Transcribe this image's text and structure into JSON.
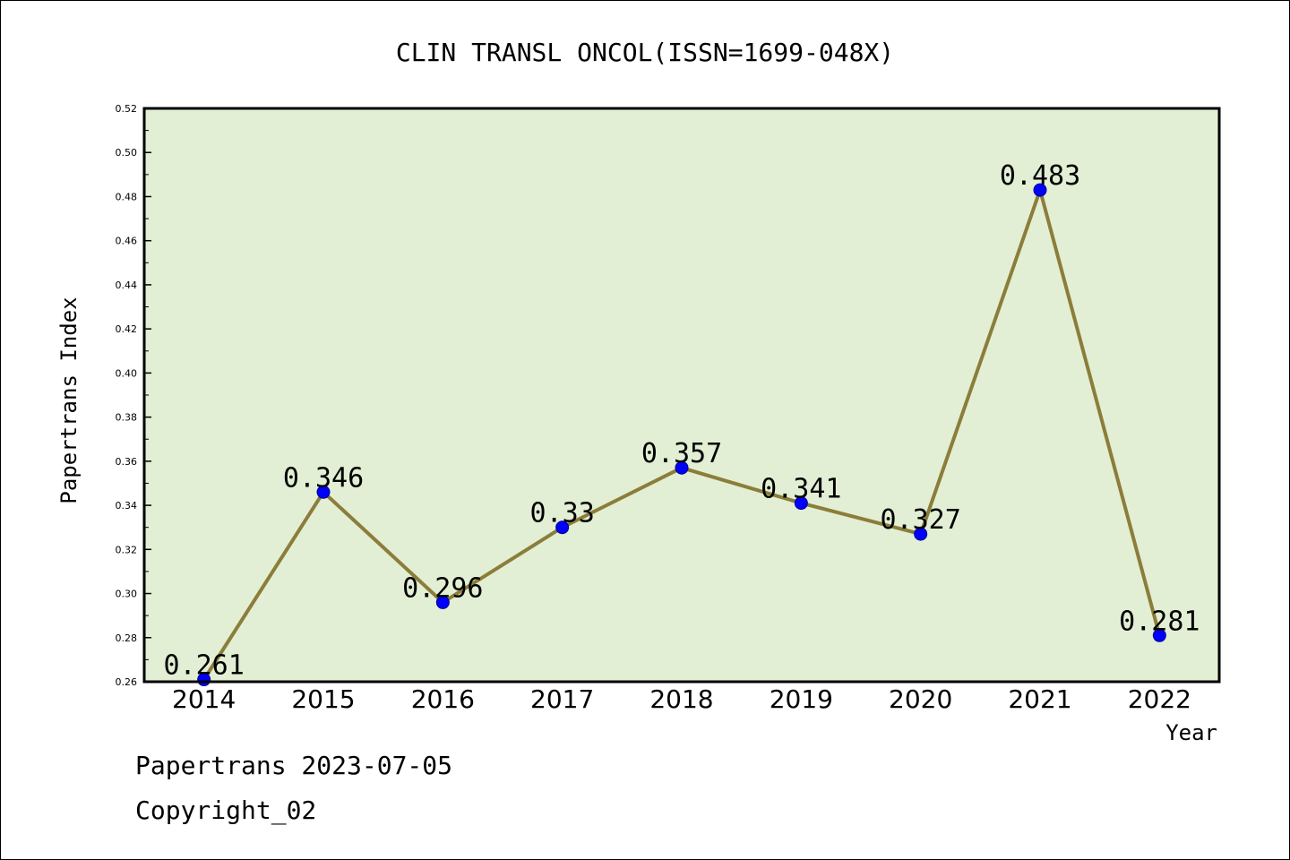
{
  "chart_data": {
    "type": "line",
    "title": "CLIN TRANSL ONCOL(ISSN=1699-048X)",
    "xlabel": "Year",
    "ylabel": "Papertrans Index",
    "categories": [
      "2014",
      "2015",
      "2016",
      "2017",
      "2018",
      "2019",
      "2020",
      "2021",
      "2022"
    ],
    "values": [
      0.261,
      0.346,
      0.296,
      0.33,
      0.357,
      0.341,
      0.327,
      0.483,
      0.281
    ],
    "data_labels": [
      "0.261",
      "0.346",
      "0.296",
      "0.33",
      "0.357",
      "0.341",
      "0.327",
      "0.483",
      "0.281"
    ],
    "ylim": [
      0.26,
      0.52
    ],
    "yticks": [
      "0.26",
      "0.28",
      "0.30",
      "0.32",
      "0.34",
      "0.36",
      "0.38",
      "0.40",
      "0.42",
      "0.44",
      "0.46",
      "0.48",
      "0.50",
      "0.52"
    ],
    "grid": false,
    "legend": "none",
    "colors": {
      "plot_background": "#e2efd4",
      "line": "#8b7d3a",
      "marker": "#0000ff",
      "marker_edge": "#00008b",
      "frame": "#000000"
    }
  },
  "footer": {
    "line1": "Papertrans 2023-07-05",
    "line2": "Copyright_02"
  }
}
